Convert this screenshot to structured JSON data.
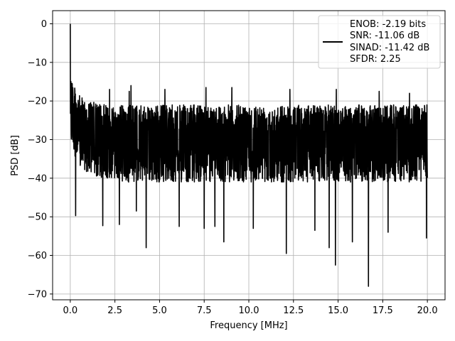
{
  "chart_data": {
    "type": "line",
    "xlabel": "Frequency [MHz]",
    "ylabel": "PSD [dB]",
    "xlim": [
      -0.99,
      20.99
    ],
    "ylim": [
      -71.5,
      3.4
    ],
    "xticks": [
      0,
      2.5,
      5,
      7.5,
      10,
      12.5,
      15,
      17.5,
      20
    ],
    "xtick_labels": [
      "0.0",
      "2.5",
      "5.0",
      "7.5",
      "10.0",
      "12.5",
      "15.0",
      "17.5",
      "20.0"
    ],
    "yticks": [
      0,
      -10,
      -20,
      -30,
      -40,
      -50,
      -60,
      -70
    ],
    "ytick_labels": [
      "0",
      "−10",
      "−20",
      "−30",
      "−40",
      "−50",
      "−60",
      "−70"
    ],
    "grid": true,
    "legend_position": "top-right",
    "legend": {
      "line1": "ENOB: -2.19 bits",
      "line2": "SNR: -11.06 dB",
      "line3": "SINAD: -11.42 dB",
      "line4": "SFDR: 2.25"
    },
    "series": [
      {
        "color": "#000000",
        "description": "noise-like PSD; approximate envelope of visible trace",
        "x": [
          0.0,
          0.02,
          0.05,
          0.1,
          0.15,
          0.2,
          0.3,
          0.4,
          0.6,
          0.8,
          1.0,
          1.5,
          2.0,
          2.5,
          3.0,
          4.0,
          5.0,
          7.5,
          10.0,
          12.5,
          15.0,
          17.5,
          20.0
        ],
        "upper": [
          0.0,
          -6,
          -10,
          -13,
          -15,
          -16,
          -17,
          -18,
          -19,
          -19.5,
          -20,
          -20.5,
          -21,
          -21,
          -21,
          -21,
          -21,
          -21,
          -21,
          -21,
          -21,
          -21,
          -21
        ],
        "lower": [
          -24,
          -30,
          -32,
          -30,
          -32,
          -33,
          -35,
          -37,
          -38,
          -38,
          -39,
          -40,
          -40,
          -40,
          -41,
          -41,
          -41,
          -41,
          -41,
          -41,
          -41,
          -41,
          -41
        ],
        "dips": [
          {
            "x": 0.3,
            "y": -49.7
          },
          {
            "x": 1.82,
            "y": -52.3
          },
          {
            "x": 2.75,
            "y": -52.0
          },
          {
            "x": 3.3,
            "y": -57.5
          },
          {
            "x": 3.7,
            "y": -48.5
          },
          {
            "x": 4.25,
            "y": -58.0
          },
          {
            "x": 6.1,
            "y": -52.5
          },
          {
            "x": 7.5,
            "y": -53.0
          },
          {
            "x": 8.1,
            "y": -52.5
          },
          {
            "x": 8.6,
            "y": -56.5
          },
          {
            "x": 10.25,
            "y": -53.0
          },
          {
            "x": 12.1,
            "y": -59.5
          },
          {
            "x": 13.7,
            "y": -53.5
          },
          {
            "x": 14.5,
            "y": -58.0
          },
          {
            "x": 14.85,
            "y": -62.5
          },
          {
            "x": 15.8,
            "y": -56.5
          },
          {
            "x": 16.7,
            "y": -68.0
          },
          {
            "x": 17.8,
            "y": -54.0
          },
          {
            "x": 19.95,
            "y": -55.5
          }
        ],
        "peaks": [
          {
            "x": 2.2,
            "y": -17.0
          },
          {
            "x": 3.3,
            "y": -17.5
          },
          {
            "x": 3.4,
            "y": -16.0
          },
          {
            "x": 5.3,
            "y": -17.0
          },
          {
            "x": 7.6,
            "y": -16.5
          },
          {
            "x": 9.05,
            "y": -16.5
          },
          {
            "x": 12.3,
            "y": -17.0
          },
          {
            "x": 14.9,
            "y": -17.0
          },
          {
            "x": 17.3,
            "y": -17.5
          },
          {
            "x": 19.0,
            "y": -18.0
          }
        ]
      }
    ]
  }
}
